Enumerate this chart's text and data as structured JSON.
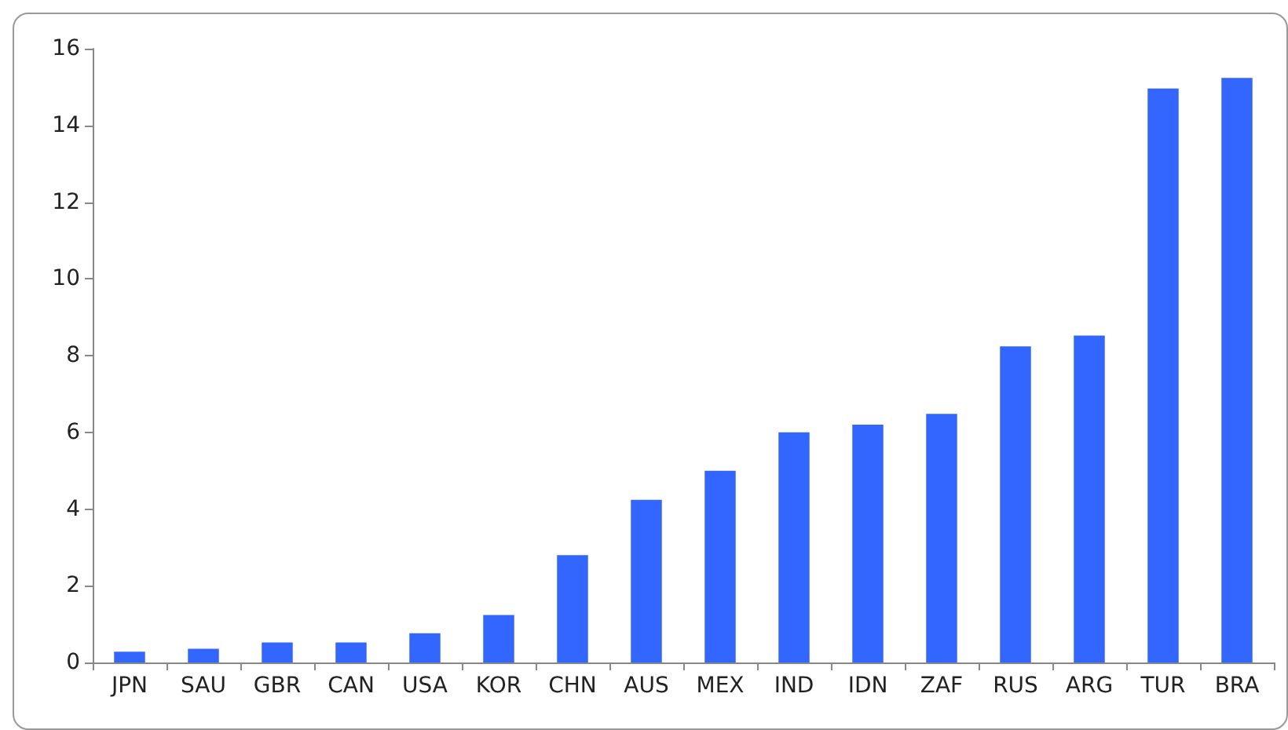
{
  "chart_data": {
    "type": "bar",
    "categories": [
      "JPN",
      "SAU",
      "GBR",
      "CAN",
      "USA",
      "KOR",
      "CHN",
      "AUS",
      "MEX",
      "IND",
      "IDN",
      "ZAF",
      "RUS",
      "ARG",
      "TUR",
      "BRA"
    ],
    "values": [
      0.28,
      0.36,
      0.52,
      0.52,
      0.76,
      1.24,
      2.8,
      4.24,
      5.0,
      6.0,
      6.2,
      6.48,
      8.24,
      8.52,
      14.96,
      15.24
    ],
    "color": "#3366ff",
    "ylim": [
      0,
      16
    ],
    "yticks": [
      0,
      2,
      4,
      6,
      8,
      10,
      12,
      14,
      16
    ],
    "grid": false
  }
}
